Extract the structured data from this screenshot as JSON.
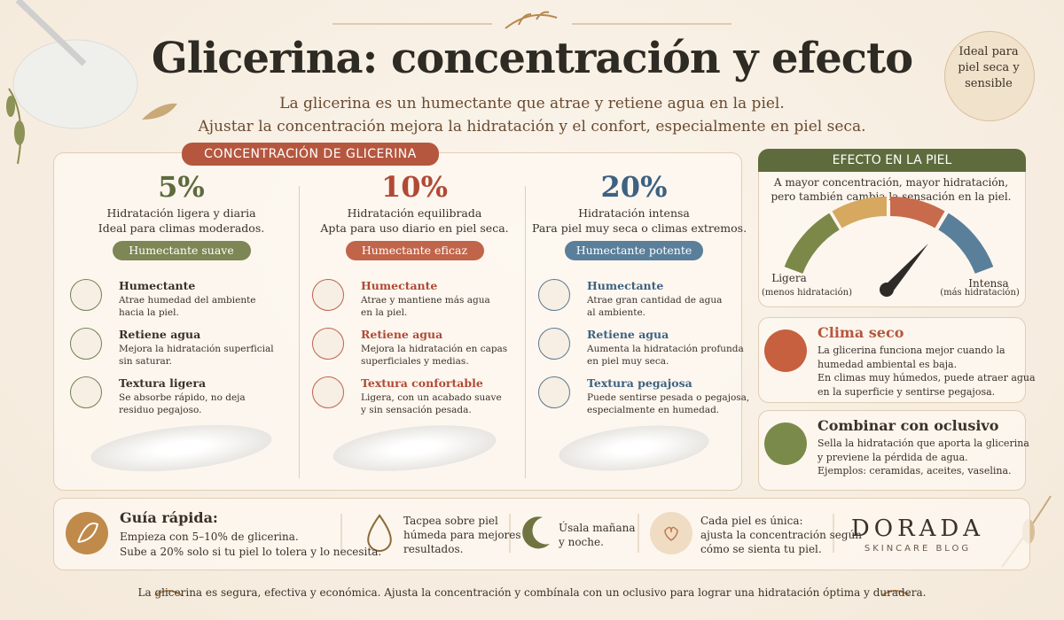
{
  "header": {
    "title": "Glicerina: concentración y efecto",
    "subtitle": [
      "La glicerina es un humectante que atrae y retiene agua en la piel.",
      "Ajustar la concentración mejora la hidratación y el confort, especialmente en piel seca."
    ],
    "badge": [
      "Ideal para",
      "piel seca y",
      "sensible"
    ]
  },
  "concentration": {
    "title": "CONCENTRACIÓN DE GLICERINA",
    "columns": [
      {
        "percent": "5%",
        "description": [
          "Hidratación ligera y diaria",
          "Ideal para climas moderados."
        ],
        "tag": "Humectante suave",
        "features": [
          {
            "title": "Humectante",
            "text": [
              "Atrae humedad del ambiente",
              "hacia la piel."
            ]
          },
          {
            "title": "Retiene agua",
            "text": [
              "Mejora la hidratación superficial",
              "sin saturar."
            ]
          },
          {
            "title": "Textura ligera",
            "text": [
              "Se absorbe rápido, no deja",
              "residuo pegajoso."
            ]
          }
        ]
      },
      {
        "percent": "10%",
        "description": [
          "Hidratación equilibrada",
          "Apta para uso diario en piel seca."
        ],
        "tag": "Humectante eficaz",
        "features": [
          {
            "title": "Humectante",
            "text": [
              "Atrae y mantiene más agua",
              "en la piel."
            ]
          },
          {
            "title": "Retiene agua",
            "text": [
              "Mejora la hidratación en capas",
              "superficiales y medias."
            ]
          },
          {
            "title": "Textura confortable",
            "text": [
              "Ligera, con un acabado suave",
              "y sin sensación pesada."
            ]
          }
        ]
      },
      {
        "percent": "20%",
        "description": [
          "Hidratación intensa",
          "Para piel muy seca o climas extremos."
        ],
        "tag": "Humectante potente",
        "features": [
          {
            "title": "Humectante",
            "text": [
              "Atrae gran cantidad de agua",
              "al ambiente."
            ]
          },
          {
            "title": "Retiene agua",
            "text": [
              "Aumenta la hidratación profunda",
              "en piel muy seca."
            ]
          },
          {
            "title": "Textura pegajosa",
            "text": [
              "Puede sentirse pesada o pegajosa,",
              "especialmente en humedad."
            ]
          }
        ]
      }
    ]
  },
  "effect": {
    "title": "EFECTO EN LA PIEL",
    "description": [
      "A mayor concentración, mayor hidratación,",
      "pero también cambia la sensación en la piel."
    ],
    "low": {
      "label": "Ligera",
      "note": "(menos hidratación)"
    },
    "high": {
      "label": "Intensa",
      "note": "(más hidratación)"
    }
  },
  "cards": [
    {
      "title": "Clima seco",
      "text": [
        "La glicerina funciona mejor cuando la",
        "humedad ambiental es baja.",
        "En climas muy húmedos, puede atraer agua",
        "en la superficie y sentirse pegajosa."
      ]
    },
    {
      "title": "Combinar con oclusivo",
      "text": [
        "Sella la hidratación que aporta la glicerina",
        "y previene la pérdida de agua.",
        "Ejemplos: ceramidas, aceites, vaselina."
      ]
    }
  ],
  "guide": {
    "title": "Guía rápida:",
    "text": [
      "Empieza con 5–10% de glicerina.",
      "Sube a 20% solo si tu piel lo tolera y lo necesita."
    ]
  },
  "tips": [
    [
      "Tacpea sobre piel",
      "húmeda para mejores",
      "resultados."
    ],
    [
      "Úsala mañana",
      "y noche."
    ],
    [
      "Cada piel es única:",
      "ajusta la concentración según",
      "cómo se sienta tu piel."
    ]
  ],
  "brand": {
    "name": "DORADA",
    "tagline": "SKINCARE BLOG"
  },
  "footer": "La glicerina es segura, efectiva y económica. Ajusta la concentración y combínala con un oclusivo para lograr una hidratación óptima y duradera."
}
